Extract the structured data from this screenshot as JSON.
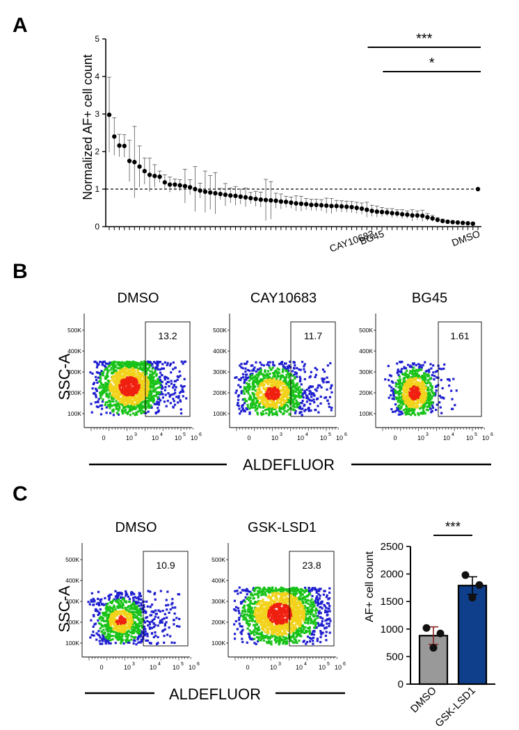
{
  "panels": {
    "a": {
      "label": "A"
    },
    "b": {
      "label": "B"
    },
    "c": {
      "label": "C"
    }
  },
  "colors": {
    "points": "#000000",
    "dmso_bar": "#999999",
    "gsk_bar": "#0f3f8a",
    "density_low": "#1f1fd0",
    "density_mid": "#19c219",
    "density_high": "#f2d21b",
    "density_peak": "#f02010"
  },
  "chart_data": [
    {
      "type": "scatter",
      "panel": "A",
      "title": "",
      "xlabel": "",
      "ylabel": "Normalized  AF+ cell count",
      "ylim": [
        0,
        5
      ],
      "yticks": [
        "0",
        "1",
        "2",
        "3",
        "4",
        "5"
      ],
      "reference_line": {
        "y": 1,
        "style": "dashed"
      },
      "labeled_points": [
        {
          "index": 52,
          "label": "CAY10683"
        },
        {
          "index": 54,
          "label": "BG45"
        },
        {
          "index": 73,
          "label": "DMSO"
        }
      ],
      "significance": [
        {
          "from_index": 52,
          "to_index": 73,
          "label": "***"
        },
        {
          "from_index": 55,
          "to_index": 73,
          "label": "*"
        }
      ],
      "values": [
        2.98,
        2.4,
        2.16,
        2.15,
        1.75,
        1.72,
        1.6,
        1.48,
        1.38,
        1.35,
        1.33,
        1.18,
        1.12,
        1.12,
        1.1,
        1.08,
        1.05,
        1.0,
        0.96,
        0.93,
        0.91,
        0.89,
        0.87,
        0.85,
        0.83,
        0.82,
        0.8,
        0.78,
        0.76,
        0.74,
        0.72,
        0.71,
        0.7,
        0.69,
        0.67,
        0.66,
        0.64,
        0.62,
        0.61,
        0.6,
        0.58,
        0.58,
        0.57,
        0.56,
        0.55,
        0.55,
        0.54,
        0.53,
        0.52,
        0.5,
        0.48,
        0.45,
        0.42,
        0.4,
        0.39,
        0.38,
        0.36,
        0.35,
        0.33,
        0.32,
        0.3,
        0.3,
        0.29,
        0.25,
        0.22,
        0.18,
        0.15,
        0.13,
        0.12,
        0.11,
        0.1,
        0.09,
        0.08,
        1.0
      ],
      "errors": [
        1.0,
        0.5,
        0.3,
        0.3,
        0.55,
        0.95,
        0.55,
        0.35,
        0.45,
        0.3,
        0.15,
        0.2,
        0.2,
        0.15,
        0.15,
        0.45,
        0.2,
        0.6,
        0.2,
        0.55,
        0.45,
        0.55,
        0.15,
        0.3,
        0.2,
        0.25,
        0.2,
        0.25,
        0.15,
        0.2,
        0.2,
        0.55,
        0.5,
        0.2,
        0.2,
        0.15,
        0.15,
        0.2,
        0.2,
        0.15,
        0.15,
        0.15,
        0.15,
        0.2,
        0.2,
        0.15,
        0.15,
        0.15,
        0.15,
        0.15,
        0.15,
        0.2,
        0.15,
        0.15,
        0.12,
        0.1,
        0.12,
        0.1,
        0.12,
        0.1,
        0.15,
        0.12,
        0.15,
        0.1,
        0.08,
        0.06,
        0.05,
        0.04,
        0.03,
        0.02,
        0.02,
        0.02,
        0.02,
        0.0
      ]
    },
    {
      "type": "density-plot",
      "panel": "B",
      "xlabel": "ALDEFLUOR",
      "ylabel": "SSC-A",
      "yticks": [
        "100K",
        "200K",
        "300K",
        "400K",
        "500K"
      ],
      "xticks": [
        "0",
        "10",
        "10",
        "10",
        "10"
      ],
      "xtick_exponents": [
        "",
        "3",
        "4",
        "5",
        "6"
      ],
      "plots": [
        {
          "title": "DMSO",
          "gate_percent": "13.2"
        },
        {
          "title": "CAY10683",
          "gate_percent": "11.7"
        },
        {
          "title": "BG45",
          "gate_percent": "1.61"
        }
      ]
    },
    {
      "type": "density-plot",
      "panel": "C",
      "xlabel": "ALDEFLUOR",
      "ylabel": "SSC-A",
      "yticks": [
        "100K",
        "200K",
        "300K",
        "400K",
        "500K"
      ],
      "xticks": [
        "0",
        "10",
        "10",
        "10",
        "10"
      ],
      "xtick_exponents": [
        "",
        "3",
        "4",
        "5",
        "6"
      ],
      "plots": [
        {
          "title": "DMSO",
          "gate_percent": "10.9"
        },
        {
          "title": "GSK-LSD1",
          "gate_percent": "23.8"
        }
      ]
    },
    {
      "type": "bar",
      "panel": "C",
      "title": "",
      "xlabel": "",
      "ylabel": "AF+ cell count",
      "ylim": [
        0,
        2500
      ],
      "yticks": [
        "0",
        "500",
        "1000",
        "1500",
        "2000",
        "2500"
      ],
      "categories": [
        "DMSO",
        "GSK-LSD1"
      ],
      "values": [
        880,
        1790
      ],
      "errors": [
        160,
        160
      ],
      "replicates": [
        [
          1020,
          920,
          660
        ],
        [
          1980,
          1800,
          1570
        ]
      ],
      "significance": {
        "label": "***"
      }
    }
  ]
}
